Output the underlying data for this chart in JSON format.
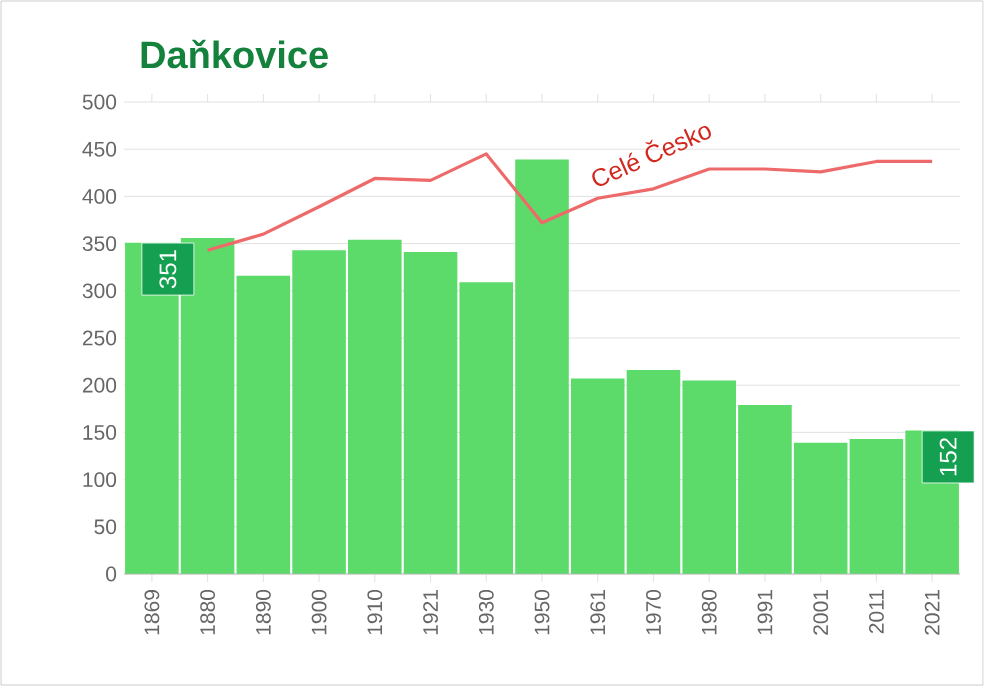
{
  "chart_data": {
    "type": "bar",
    "title": "Daňkovice",
    "categories": [
      "1869",
      "1880",
      "1890",
      "1900",
      "1910",
      "1921",
      "1930",
      "1950",
      "1961",
      "1970",
      "1980",
      "1991",
      "2001",
      "2011",
      "2021"
    ],
    "series": [
      {
        "color": "#5cdb6a",
        "values": [
          351,
          356,
          316,
          343,
          354,
          341,
          309,
          439,
          207,
          216,
          205,
          179,
          139,
          143,
          152
        ],
        "value_labels": [
          "351",
          null,
          null,
          null,
          null,
          null,
          null,
          null,
          null,
          null,
          null,
          null,
          null,
          null,
          "152"
        ]
      },
      {
        "type": "line",
        "name": "Celé Česko",
        "color": "#ee6a6a",
        "values": [
          null,
          343,
          360,
          389,
          419,
          417,
          445,
          372,
          398,
          408,
          429,
          429,
          426,
          437,
          437
        ]
      }
    ],
    "ylim": [
      0,
      500
    ],
    "yticks": [
      0,
      50,
      100,
      150,
      200,
      250,
      300,
      350,
      400,
      450,
      500
    ],
    "grid": "y"
  }
}
